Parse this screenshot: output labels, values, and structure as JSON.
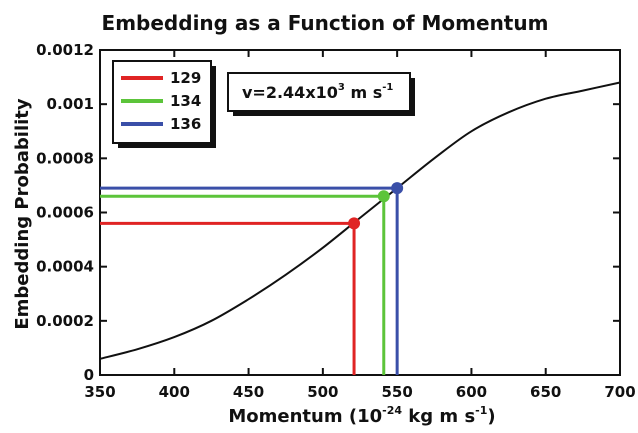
{
  "chart_data": {
    "type": "line",
    "title": "Embedding as a Function of Momentum",
    "xlabel": {
      "base": "Momentum (10",
      "exp": "-24",
      "mid": " kg m s",
      "exp2": "-1",
      "end": ")"
    },
    "ylabel": "Embedding Probability",
    "xlim": [
      350,
      700
    ],
    "ylim": [
      0,
      0.0012
    ],
    "x_ticks": [
      350,
      400,
      450,
      500,
      550,
      600,
      650,
      700
    ],
    "y_ticks": [
      0,
      0.0002,
      0.0004,
      0.0006,
      0.0008,
      0.001,
      0.0012
    ],
    "y_tick_labels": [
      "0",
      "0.0002",
      "0.0004",
      "0.0006",
      "0.0008",
      "0.001",
      "0.0012"
    ],
    "curve": {
      "x": [
        350,
        375,
        400,
        425,
        450,
        475,
        500,
        525,
        550,
        575,
        600,
        625,
        650,
        675,
        700
      ],
      "y": [
        6e-05,
        9.5e-05,
        0.00014,
        0.0002,
        0.00028,
        0.00037,
        0.00047,
        0.00058,
        0.00069,
        0.0008,
        0.0009,
        0.00097,
        0.00102,
        0.00105,
        0.00108
      ]
    },
    "series": [
      {
        "name": "129",
        "color": "#e02424",
        "x": 521,
        "y": 0.00056
      },
      {
        "name": "134",
        "color": "#5cc43a",
        "x": 541,
        "y": 0.00066
      },
      {
        "name": "136",
        "color": "#3a4fa8",
        "x": 550,
        "y": 0.00069
      }
    ],
    "annotation": {
      "base": "v=2.44x10",
      "exp": "3",
      "mid": " m s",
      "exp2": "-1"
    },
    "legend_placement": "top-left",
    "grid": false
  }
}
